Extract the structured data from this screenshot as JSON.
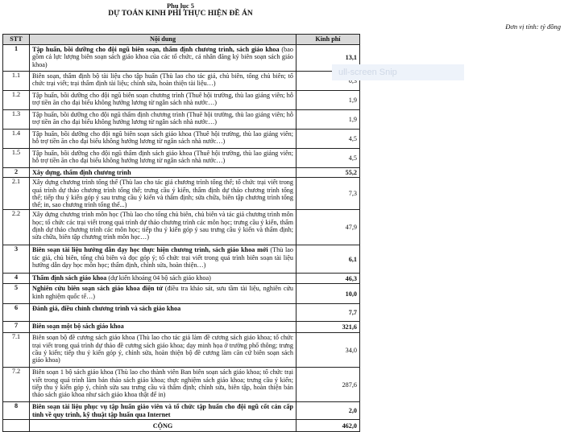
{
  "header": {
    "appendix": "Phụ lục 5",
    "title": "DỰ TOÁN KINH PHÍ THỰC HIỆN ĐỀ ÁN",
    "unit": "Đơn vị tính: tỷ đồng"
  },
  "overlay": {
    "text": "ull-screen Snip"
  },
  "table": {
    "columns": [
      "STT",
      "Nội dung",
      "Kinh phí"
    ],
    "rows": [
      {
        "stt": "1",
        "bold": "Tập huấn, bồi dưỡng cho đội ngũ biên soạn, thẩm định chương trình, sách giáo khoa",
        "text": " (bao gồm cả lực lượng biên soạn sách giáo khoa của các tổ chức, cá nhân đăng ký biên soạn sách giáo khoa)",
        "value": "13,1",
        "major": true
      },
      {
        "stt": "1.1",
        "bold": "",
        "text": "Biên soạn, thẩm định bộ tài liệu cho tập huấn (Thù lao cho tác giả, chủ biên, tổng chủ biên; tổ chức trại viết; trại thẩm định tài liệu; chỉnh sửa, hoàn thiện tài liệu…)",
        "value": "0,3"
      },
      {
        "stt": "1.2",
        "bold": "",
        "text": "Tập huấn, bồi dưỡng cho đội ngũ biên soạn chương trình (Thuê hội trường, thù lao giảng viên; hỗ trợ tiền ăn cho đại biểu không hưởng lương từ ngân sách nhà nước…)",
        "value": "1,9"
      },
      {
        "stt": "1.3",
        "bold": "",
        "text": "Tập huấn, bồi dưỡng cho đội ngũ thẩm định chương trình (Thuê hội trường, thù lao giảng viên; hỗ trợ tiền ăn cho đại biểu không hưởng lương từ ngân sách nhà nước…)",
        "value": "1,9"
      },
      {
        "stt": "1.4",
        "bold": "",
        "text": "Tập huấn, bồi dưỡng cho đội ngũ biên soạn sách giáo khoa (Thuê hội trường, thù lao giảng viên; hỗ trợ tiền ăn cho đại biểu không hưởng lương từ ngân sách nhà nước…)",
        "value": "4,5"
      },
      {
        "stt": "1.5",
        "bold": "",
        "text": "Tập huấn, bồi dưỡng cho đội ngũ thẩm định sách giáo khoa (Thuê hội trường, thù lao giảng viên; hỗ trợ tiền ăn cho đại biểu không hưởng lương từ ngân sách nhà nước…)",
        "value": "4,5"
      },
      {
        "stt": "2",
        "bold": "Xây dựng, thẩm định chương trình",
        "text": "",
        "value": "55,2",
        "major": true
      },
      {
        "stt": "2.1",
        "bold": "",
        "text": "Xây dựng chương trình tổng thể (Thù lao cho tác giả chương trình tổng thể; tổ chức trại viết trong quá trình dự thảo chương trình tổng thể; trưng cầu ý kiến, thẩm định dự thảo chương trình tổng thể; tiếp thu ý kiến góp ý sau trưng cầu ý kiến và thẩm định; sửa chữa, biên tập chương trình tổng thể; in, sao chương trình tổng thể...)",
        "value": "7,3"
      },
      {
        "stt": "2.2",
        "bold": "",
        "text": "Xây dựng chương trình môn học (Thù lao cho tổng chủ biên, chủ biên và tác giả chương trình môn học; tổ chức các trại viết trong quá trình dự thảo chương trình các môn học; trưng cầu ý kiến, thẩm định dự thảo chương trình các môn học; tiếp thu ý kiến góp ý sau trưng cầu ý kiến và thẩm định; sửa chữa, biên tập chương trình môn học…)",
        "value": "47,9"
      },
      {
        "stt": "3",
        "bold": "Biên soạn tài liệu hướng dẫn dạy học thực hiện chương trình, sách giáo khoa mới",
        "text": " (Thù lao tác giả, chủ biên, tổng chủ biên và đọc góp ý; tổ chức trại viết trong quá trình biên soạn tài liệu hướng dẫn dạy học môn học; thẩm định, chỉnh sửa, hoàn thiện…)",
        "value": "6,1",
        "major": true
      },
      {
        "stt": "4",
        "bold": "Thẩm định sách giáo khoa",
        "text": " (dự kiến khoảng 04 bộ sách giáo khoa)",
        "value": "46,3",
        "major": true
      },
      {
        "stt": "5",
        "bold": "Nghiên cứu biên soạn sách giáo khoa điện tử",
        "text": " (điều tra khảo sát, sưu tầm tài liệu, nghiên cứu kinh nghiệm quốc tế…)",
        "value": "10,0",
        "major": true
      },
      {
        "stt": "6",
        "bold": "Đánh giá, điều chỉnh chương trình và sách giáo khoa",
        "text": "",
        "value": "7,7",
        "major": true
      },
      {
        "stt": "7",
        "bold": "Biên soạn một bộ sách giáo khoa",
        "text": "",
        "value": "321,6",
        "major": true
      },
      {
        "stt": "7.1",
        "bold": "",
        "text": "Biên soạn bộ đề cương sách giáo khoa (Thù lao cho tác giả làm đề cương sách giáo khoa; tổ chức trại viết trong quá trình dự thảo đề cương sách giáo khoa; dạy minh họa ở trường phổ thông; trưng cầu ý kiến; tiếp thu ý kiến góp ý, chỉnh sửa, hoàn thiện bộ đề cương làm căn cứ biên soạn sách giáo khoa)",
        "value": "34,0"
      },
      {
        "stt": "7.2",
        "bold": "",
        "text": "Biên soạn 1 bộ sách giáo khoa (Thù lao cho thành viên Ban biên soạn sách giáo khoa; tổ chức trại viết trong quá trình làm bản thảo sách giáo khoa; thực nghiệm sách giáo khoa; trưng cầu ý kiến; tiếp thu ý kiến góp ý, chỉnh sửa sau trưng cầu và thẩm định; chỉnh sửa, biên tập, hoàn thiện bản thảo sách giáo khoa như sách giáo khoa thật để in)",
        "value": "287,6"
      },
      {
        "stt": "8",
        "bold": "Biên soạn tài liệu phục vụ tập huấn giáo viên và tổ chức tập huấn cho đội ngũ cốt cán cấp tỉnh về quy trình, kỹ thuật tập huấn qua Internet",
        "text": "",
        "value": "2,0",
        "major": true
      }
    ],
    "total": {
      "label": "CỘNG",
      "value": "462,0"
    }
  }
}
